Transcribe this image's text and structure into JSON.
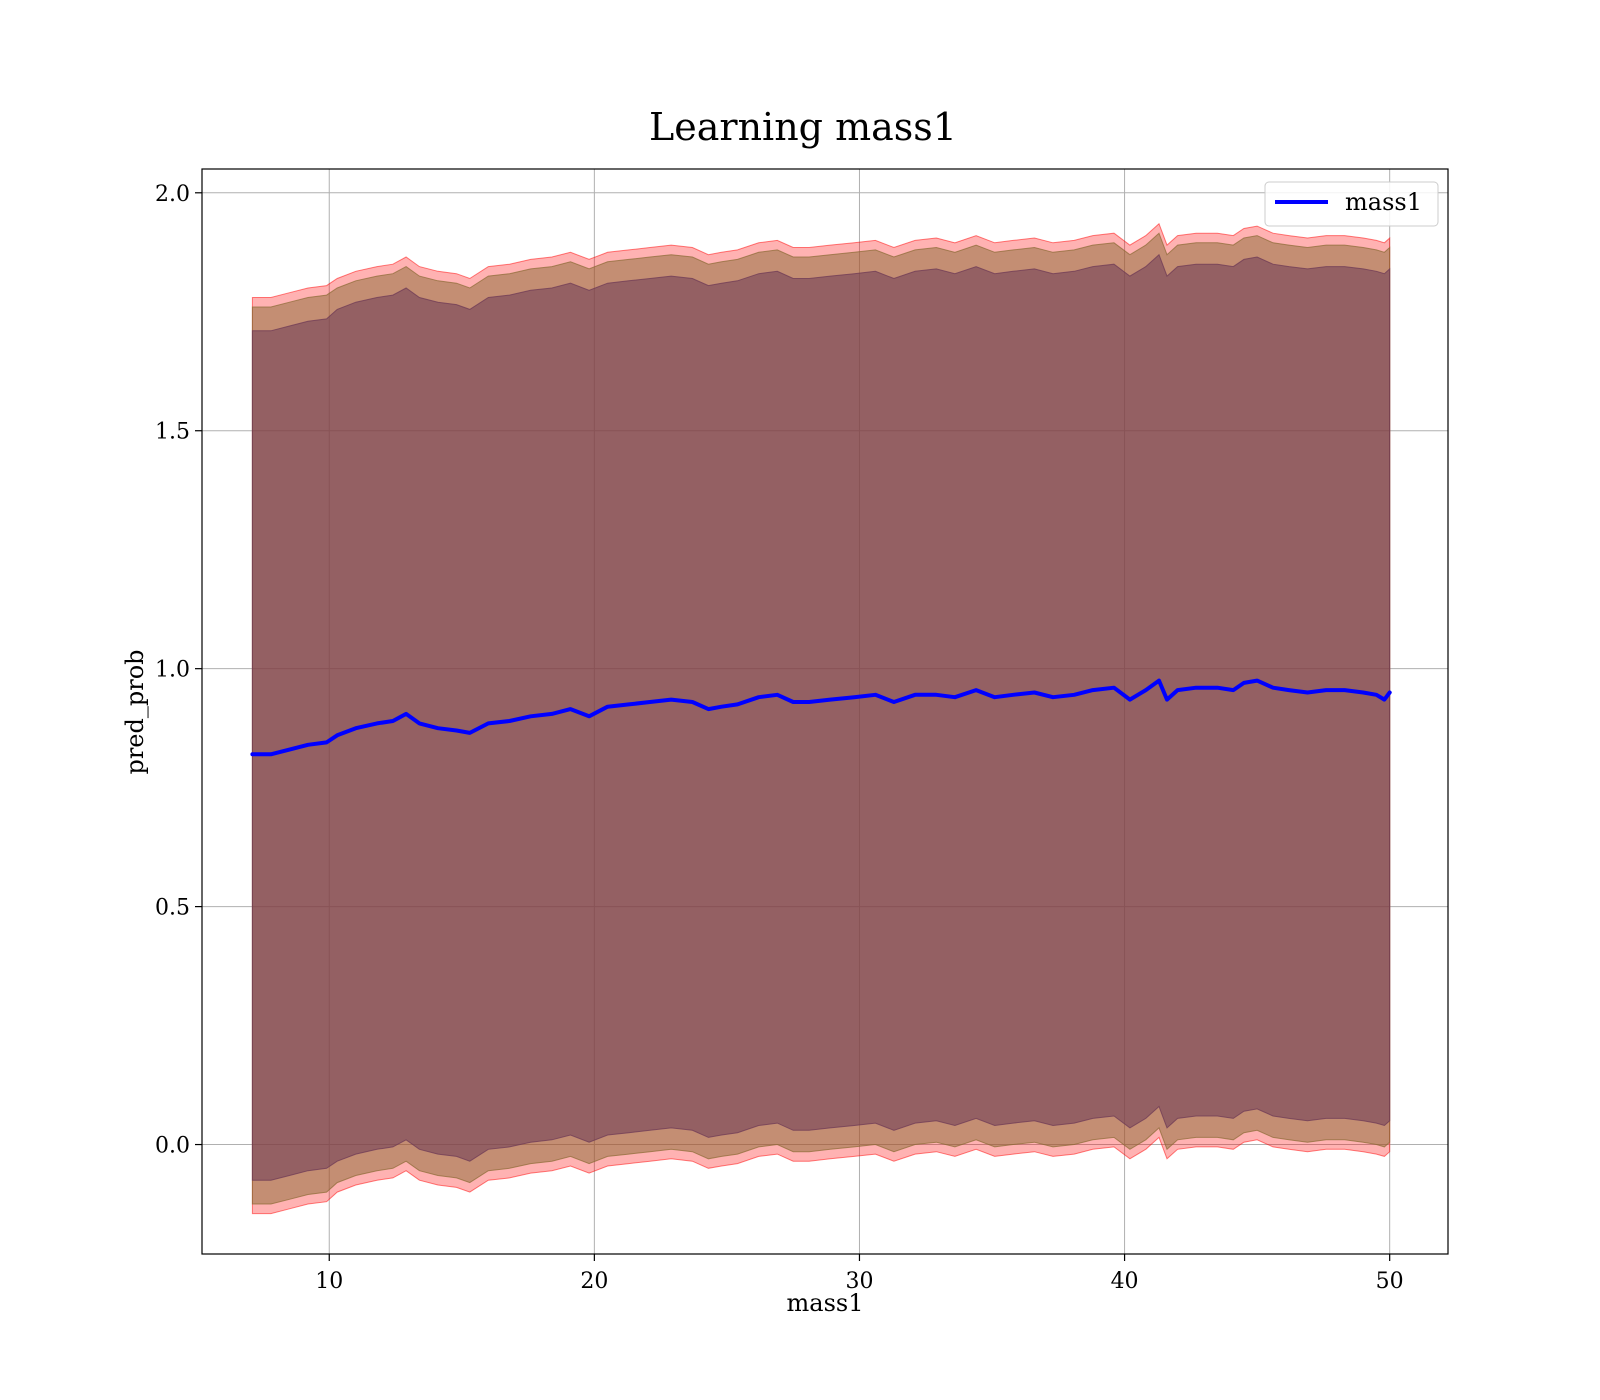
{
  "chart_data": {
    "type": "line",
    "title": "Learning mass1",
    "xlabel": "mass1",
    "ylabel": "pred_prob",
    "xlim": [
      5.2,
      52.2
    ],
    "ylim": [
      -0.23,
      2.05
    ],
    "xticks": [
      10,
      20,
      30,
      40,
      50
    ],
    "yticks": [
      0.0,
      0.5,
      1.0,
      1.5,
      2.0
    ],
    "xtick_labels": [
      "10",
      "20",
      "30",
      "40",
      "50"
    ],
    "ytick_labels": [
      "0.0",
      "0.5",
      "1.0",
      "1.5",
      "2.0"
    ],
    "grid": true,
    "legend": {
      "position": "top-right",
      "entries": [
        "mass1"
      ]
    },
    "x": [
      7.1,
      7.8,
      8.5,
      9.2,
      9.9,
      10.3,
      11.0,
      11.8,
      12.4,
      12.9,
      13.4,
      14.1,
      14.8,
      15.3,
      16.0,
      16.8,
      17.6,
      18.4,
      19.1,
      19.8,
      20.5,
      21.3,
      22.1,
      22.9,
      23.7,
      24.3,
      24.8,
      25.4,
      26.2,
      26.9,
      27.5,
      28.1,
      28.9,
      29.8,
      30.6,
      31.3,
      32.1,
      32.9,
      33.6,
      34.4,
      35.1,
      35.8,
      36.6,
      37.3,
      38.1,
      38.8,
      39.6,
      40.2,
      40.8,
      41.3,
      41.6,
      42.0,
      42.7,
      43.5,
      44.1,
      44.5,
      45.0,
      45.6,
      46.2,
      46.9,
      47.6,
      48.3,
      49.0,
      49.5,
      49.8,
      50.0
    ],
    "series": [
      {
        "name": "mass1",
        "color": "#0000ff",
        "values": [
          0.82,
          0.82,
          0.83,
          0.84,
          0.845,
          0.86,
          0.875,
          0.885,
          0.89,
          0.905,
          0.885,
          0.875,
          0.87,
          0.865,
          0.885,
          0.89,
          0.9,
          0.905,
          0.915,
          0.9,
          0.92,
          0.925,
          0.93,
          0.935,
          0.93,
          0.915,
          0.92,
          0.925,
          0.94,
          0.945,
          0.93,
          0.93,
          0.935,
          0.94,
          0.945,
          0.93,
          0.945,
          0.945,
          0.94,
          0.955,
          0.94,
          0.945,
          0.95,
          0.94,
          0.945,
          0.955,
          0.96,
          0.935,
          0.955,
          0.975,
          0.935,
          0.955,
          0.96,
          0.96,
          0.955,
          0.97,
          0.975,
          0.96,
          0.955,
          0.95,
          0.955,
          0.955,
          0.95,
          0.945,
          0.935,
          0.95
        ]
      }
    ],
    "bands": [
      {
        "name": "outer",
        "color": "#ff0000",
        "opacity": 0.3,
        "upper": [
          1.78,
          1.78,
          1.79,
          1.8,
          1.805,
          1.82,
          1.835,
          1.845,
          1.85,
          1.865,
          1.845,
          1.835,
          1.83,
          1.82,
          1.845,
          1.85,
          1.86,
          1.865,
          1.875,
          1.86,
          1.875,
          1.88,
          1.885,
          1.89,
          1.885,
          1.87,
          1.875,
          1.88,
          1.895,
          1.9,
          1.885,
          1.885,
          1.89,
          1.895,
          1.9,
          1.885,
          1.9,
          1.905,
          1.895,
          1.91,
          1.895,
          1.9,
          1.905,
          1.895,
          1.9,
          1.91,
          1.915,
          1.89,
          1.91,
          1.935,
          1.89,
          1.91,
          1.915,
          1.915,
          1.91,
          1.925,
          1.93,
          1.915,
          1.91,
          1.905,
          1.91,
          1.91,
          1.905,
          1.9,
          1.895,
          1.905
        ],
        "lower": [
          -0.145,
          -0.145,
          -0.135,
          -0.125,
          -0.12,
          -0.1,
          -0.085,
          -0.075,
          -0.07,
          -0.055,
          -0.075,
          -0.085,
          -0.09,
          -0.1,
          -0.075,
          -0.07,
          -0.06,
          -0.055,
          -0.045,
          -0.06,
          -0.045,
          -0.04,
          -0.035,
          -0.03,
          -0.035,
          -0.05,
          -0.045,
          -0.04,
          -0.025,
          -0.02,
          -0.035,
          -0.035,
          -0.03,
          -0.025,
          -0.02,
          -0.035,
          -0.02,
          -0.015,
          -0.025,
          -0.01,
          -0.025,
          -0.02,
          -0.015,
          -0.025,
          -0.02,
          -0.01,
          -0.005,
          -0.03,
          -0.01,
          0.015,
          -0.03,
          -0.01,
          -0.005,
          -0.005,
          -0.01,
          0.005,
          0.01,
          -0.005,
          -0.01,
          -0.015,
          -0.01,
          -0.01,
          -0.015,
          -0.02,
          -0.025,
          -0.015
        ]
      },
      {
        "name": "middle",
        "color": "#8a6a33",
        "opacity": 0.5,
        "upper": [
          1.76,
          1.76,
          1.77,
          1.78,
          1.785,
          1.8,
          1.815,
          1.825,
          1.83,
          1.845,
          1.825,
          1.815,
          1.81,
          1.8,
          1.825,
          1.83,
          1.84,
          1.845,
          1.855,
          1.84,
          1.855,
          1.86,
          1.865,
          1.87,
          1.865,
          1.85,
          1.855,
          1.86,
          1.875,
          1.88,
          1.865,
          1.865,
          1.87,
          1.875,
          1.88,
          1.865,
          1.88,
          1.885,
          1.875,
          1.89,
          1.875,
          1.88,
          1.885,
          1.875,
          1.88,
          1.89,
          1.895,
          1.87,
          1.89,
          1.915,
          1.87,
          1.89,
          1.895,
          1.895,
          1.89,
          1.905,
          1.91,
          1.895,
          1.89,
          1.885,
          1.89,
          1.89,
          1.885,
          1.88,
          1.875,
          1.885
        ],
        "lower": [
          -0.125,
          -0.125,
          -0.115,
          -0.105,
          -0.1,
          -0.08,
          -0.065,
          -0.055,
          -0.05,
          -0.035,
          -0.055,
          -0.065,
          -0.07,
          -0.08,
          -0.055,
          -0.05,
          -0.04,
          -0.035,
          -0.025,
          -0.04,
          -0.025,
          -0.02,
          -0.015,
          -0.01,
          -0.015,
          -0.03,
          -0.025,
          -0.02,
          -0.005,
          0.0,
          -0.015,
          -0.015,
          -0.01,
          -0.005,
          0.0,
          -0.015,
          0.0,
          0.005,
          -0.005,
          0.01,
          -0.005,
          0.0,
          0.005,
          -0.005,
          0.0,
          0.01,
          0.015,
          -0.01,
          0.01,
          0.035,
          -0.01,
          0.01,
          0.015,
          0.015,
          0.01,
          0.025,
          0.03,
          0.015,
          0.01,
          0.005,
          0.01,
          0.01,
          0.005,
          0.0,
          -0.005,
          0.005
        ]
      },
      {
        "name": "inner",
        "color": "#6e3a55",
        "opacity": 0.55,
        "upper": [
          1.71,
          1.71,
          1.72,
          1.73,
          1.735,
          1.755,
          1.77,
          1.78,
          1.785,
          1.8,
          1.78,
          1.77,
          1.765,
          1.755,
          1.78,
          1.785,
          1.795,
          1.8,
          1.81,
          1.795,
          1.81,
          1.815,
          1.82,
          1.825,
          1.82,
          1.805,
          1.81,
          1.815,
          1.83,
          1.835,
          1.82,
          1.82,
          1.825,
          1.83,
          1.835,
          1.82,
          1.835,
          1.84,
          1.83,
          1.845,
          1.83,
          1.835,
          1.84,
          1.83,
          1.835,
          1.845,
          1.85,
          1.825,
          1.845,
          1.87,
          1.825,
          1.845,
          1.85,
          1.85,
          1.845,
          1.86,
          1.865,
          1.85,
          1.845,
          1.84,
          1.845,
          1.845,
          1.84,
          1.835,
          1.83,
          1.84
        ],
        "lower": [
          -0.075,
          -0.075,
          -0.065,
          -0.055,
          -0.05,
          -0.035,
          -0.02,
          -0.01,
          -0.005,
          0.01,
          -0.01,
          -0.02,
          -0.025,
          -0.035,
          -0.01,
          -0.005,
          0.005,
          0.01,
          0.02,
          0.005,
          0.02,
          0.025,
          0.03,
          0.035,
          0.03,
          0.015,
          0.02,
          0.025,
          0.04,
          0.045,
          0.03,
          0.03,
          0.035,
          0.04,
          0.045,
          0.03,
          0.045,
          0.05,
          0.04,
          0.055,
          0.04,
          0.045,
          0.05,
          0.04,
          0.045,
          0.055,
          0.06,
          0.035,
          0.055,
          0.08,
          0.035,
          0.055,
          0.06,
          0.06,
          0.055,
          0.07,
          0.075,
          0.06,
          0.055,
          0.05,
          0.055,
          0.055,
          0.05,
          0.045,
          0.04,
          0.05
        ]
      }
    ]
  }
}
